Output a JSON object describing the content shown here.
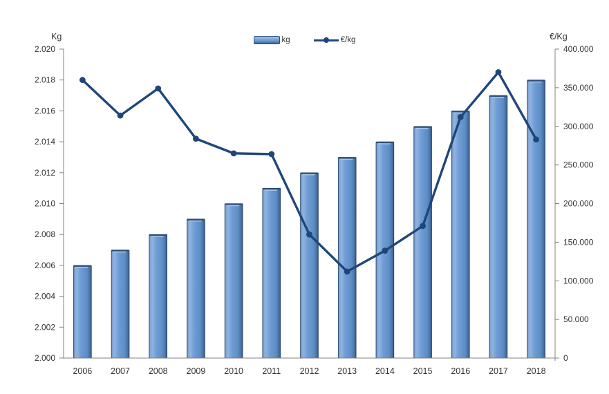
{
  "chart_data": {
    "type": "combo",
    "categories": [
      "2006",
      "2007",
      "2008",
      "2009",
      "2010",
      "2011",
      "2012",
      "2013",
      "2014",
      "2015",
      "2016",
      "2017",
      "2018"
    ],
    "series": [
      {
        "name": "kg",
        "type": "bar",
        "axis": "left",
        "values": [
          2.006,
          2.007,
          2.008,
          2.009,
          2.01,
          2.011,
          2.012,
          2.013,
          2.014,
          2.015,
          2.016,
          2.017,
          2.018
        ]
      },
      {
        "name": "€/kg",
        "type": "line",
        "axis": "right",
        "values": [
          360000,
          314000,
          349000,
          284000,
          265000,
          264000,
          160000,
          112000,
          139000,
          171000,
          312000,
          370000,
          283000
        ]
      }
    ],
    "left_axis": {
      "title": "Kg",
      "min": 2.0,
      "max": 2.02,
      "step": 0.002,
      "decimals": 3
    },
    "right_axis": {
      "title": "€/Kg",
      "min": 0,
      "max": 400000,
      "step": 50000
    },
    "legend": {
      "position": "top-center",
      "items": [
        "kg",
        "€/kg"
      ]
    },
    "grid": false
  },
  "colors": {
    "bar_light": "#8FB3E1",
    "bar_mid": "#6C9BD2",
    "bar_dark": "#2E4E74",
    "bar_highlight": "#A9C7E9",
    "line": "#1F4678",
    "axis": "#808080",
    "text": "#333333",
    "background": "#FFFFFF"
  }
}
